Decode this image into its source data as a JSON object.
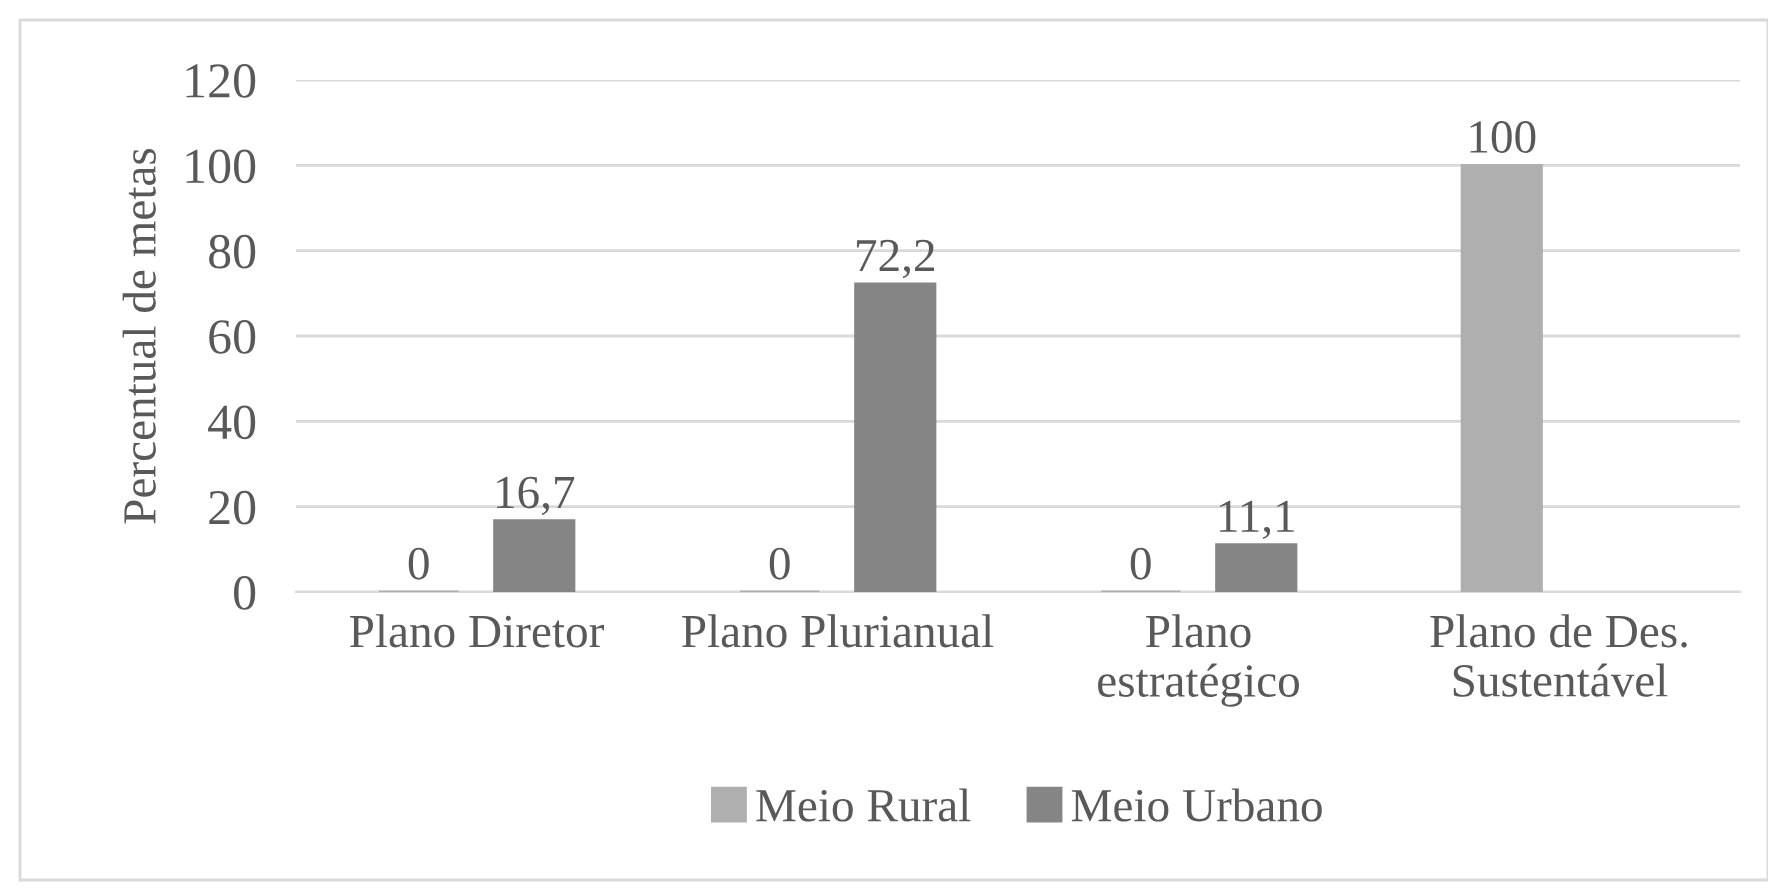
{
  "chart_data": {
    "type": "bar",
    "ylabel": "Percentual de metas",
    "categories": [
      "Plano Diretor",
      "Plano Plurianual",
      "Plano\nestratégico",
      "Plano de Des.\nSustentável"
    ],
    "series": [
      {
        "name": "Meio Rural",
        "color": "#afafaf",
        "values": [
          0,
          0,
          0,
          100
        ],
        "value_labels": [
          "0",
          "0",
          "0",
          "100"
        ]
      },
      {
        "name": "Meio Urbano",
        "color": "#858585",
        "values": [
          16.7,
          72.2,
          11.1,
          null
        ],
        "value_labels": [
          "16,7",
          "72,2",
          "11,1",
          null
        ]
      }
    ],
    "ylim": [
      0,
      120
    ],
    "yticks": [
      0,
      20,
      40,
      60,
      80,
      100,
      120
    ],
    "grid": "y",
    "legend": "bottom"
  }
}
